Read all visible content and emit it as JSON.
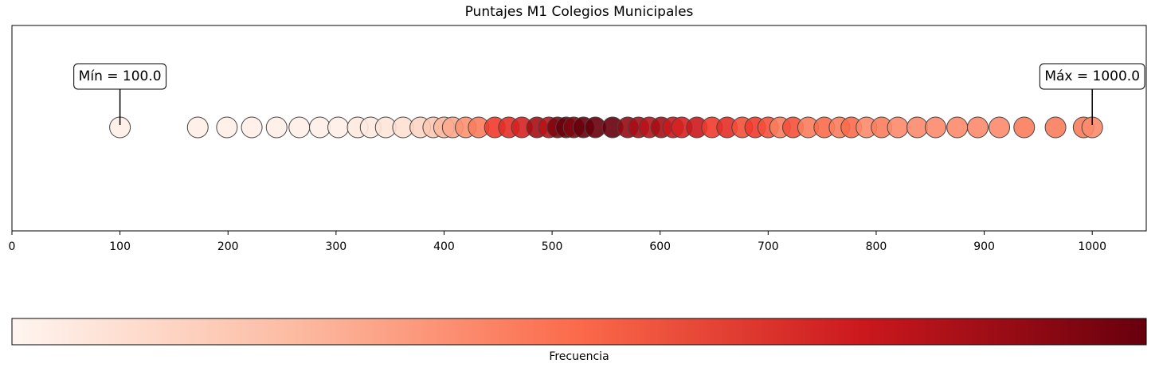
{
  "chart_data": {
    "type": "strip",
    "title": "Puntajes M1 Colegios Municipales",
    "x": [
      100,
      172,
      199,
      222,
      245,
      266,
      285,
      302,
      320,
      332,
      346,
      362,
      378,
      390,
      400,
      408,
      420,
      432,
      447,
      460,
      472,
      486,
      497,
      505,
      513,
      520,
      529,
      540,
      556,
      570,
      580,
      590,
      601,
      612,
      620,
      634,
      648,
      662,
      676,
      688,
      700,
      711,
      723,
      737,
      752,
      766,
      777,
      791,
      805,
      820,
      838,
      855,
      875,
      894,
      914,
      937,
      966,
      992,
      1000
    ],
    "colors": [
      "#fff0e8",
      "#fff0e8",
      "#fff0e8",
      "#fff0e8",
      "#fff0e8",
      "#fff0e8",
      "#fff0e8",
      "#fff0e8",
      "#feeae0",
      "#feeae0",
      "#fee4d8",
      "#fee0d2",
      "#fdd5c3",
      "#fcc8b2",
      "#fcbba1",
      "#fcaa8d",
      "#fc9272",
      "#fb7d5d",
      "#ef3b2c",
      "#e32f27",
      "#d52221",
      "#a50f15",
      "#b81419",
      "#7f0510",
      "#67000d",
      "#7f0510",
      "#67000d",
      "#67000d",
      "#67000d",
      "#940b13",
      "#a50f15",
      "#b81419",
      "#a50f15",
      "#cb181d",
      "#d52221",
      "#cb181d",
      "#ef3b2c",
      "#e32f27",
      "#f44f39",
      "#ef3b2c",
      "#f4503a",
      "#fb7d5d",
      "#f4503a",
      "#fb7d5d",
      "#fb6a4a",
      "#fb7d5d",
      "#fb6a4a",
      "#fc8a6a",
      "#fb7d5d",
      "#fc8a6a",
      "#fc8a6a",
      "#fc8a6a",
      "#fc8a6a",
      "#fc8a6a",
      "#fc8a6a",
      "#fb7d5d",
      "#fb7d5d",
      "#fb7d5d",
      "#fc8a6a"
    ],
    "xlim": [
      0,
      1050
    ],
    "xticks": [
      0,
      100,
      200,
      300,
      400,
      500,
      600,
      700,
      800,
      900,
      1000
    ],
    "annotations": [
      {
        "text": "Mín = 100.0",
        "x": 100
      },
      {
        "text": "Máx = 1000.0",
        "x": 1000
      }
    ],
    "colorbar_label": "Frecuencia"
  }
}
